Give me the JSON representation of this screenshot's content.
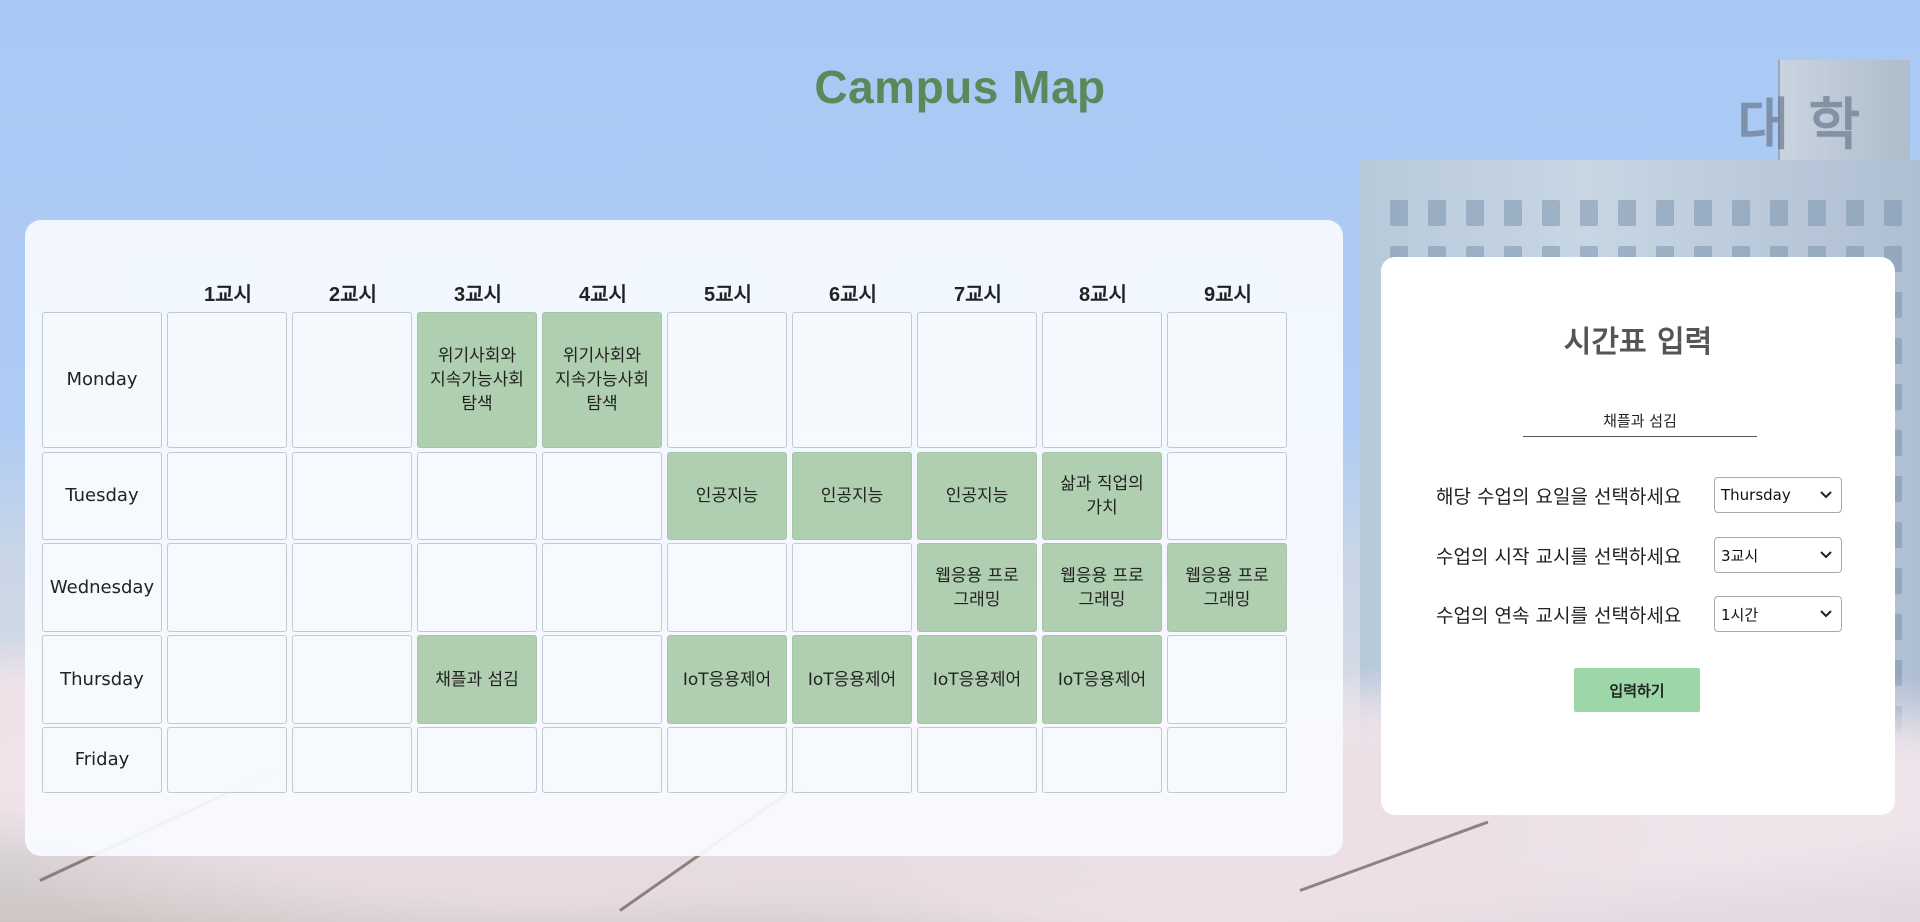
{
  "header": {
    "title": "Campus Map"
  },
  "timetable": {
    "periods": [
      "1교시",
      "2교시",
      "3교시",
      "4교시",
      "5교시",
      "6교시",
      "7교시",
      "8교시",
      "9교시"
    ],
    "rows": [
      {
        "day": "Monday",
        "cells": [
          "",
          "",
          "위기사회와 지속가능사회탐색",
          "위기사회와 지속가능사회탐색",
          "",
          "",
          "",
          "",
          ""
        ]
      },
      {
        "day": "Tuesday",
        "cells": [
          "",
          "",
          "",
          "",
          "인공지능",
          "인공지능",
          "인공지능",
          "삶과 직업의 가치",
          ""
        ]
      },
      {
        "day": "Wednesday",
        "cells": [
          "",
          "",
          "",
          "",
          "",
          "",
          "웹응용 프로그래밍",
          "웹응용 프로그래밍",
          "웹응용 프로그래밍"
        ]
      },
      {
        "day": "Thursday",
        "cells": [
          "",
          "",
          "채플과 섬김",
          "",
          "IoT응용제어",
          "IoT응용제어",
          "IoT응용제어",
          "IoT응용제어",
          ""
        ]
      },
      {
        "day": "Friday",
        "cells": [
          "",
          "",
          "",
          "",
          "",
          "",
          "",
          "",
          ""
        ]
      }
    ]
  },
  "input_panel": {
    "title": "시간표 입력",
    "course_name_value": "채플과 섬김",
    "day_label": "해당 수업의 요일을 선택하세요",
    "day_selected": "Thursday",
    "start_label": "수업의 시작 교시를 선택하세요",
    "start_selected": "3교시",
    "duration_label": "수업의 연속 교시를 선택하세요",
    "duration_selected": "1시간",
    "submit_label": "입력하기"
  },
  "background": {
    "sign_text": "대 학"
  },
  "colors": {
    "title_green": "#5a8a5c",
    "filled_cell": "#b0cfb0",
    "submit_button": "#9dd7a9",
    "sky": "#a9c9f5"
  }
}
